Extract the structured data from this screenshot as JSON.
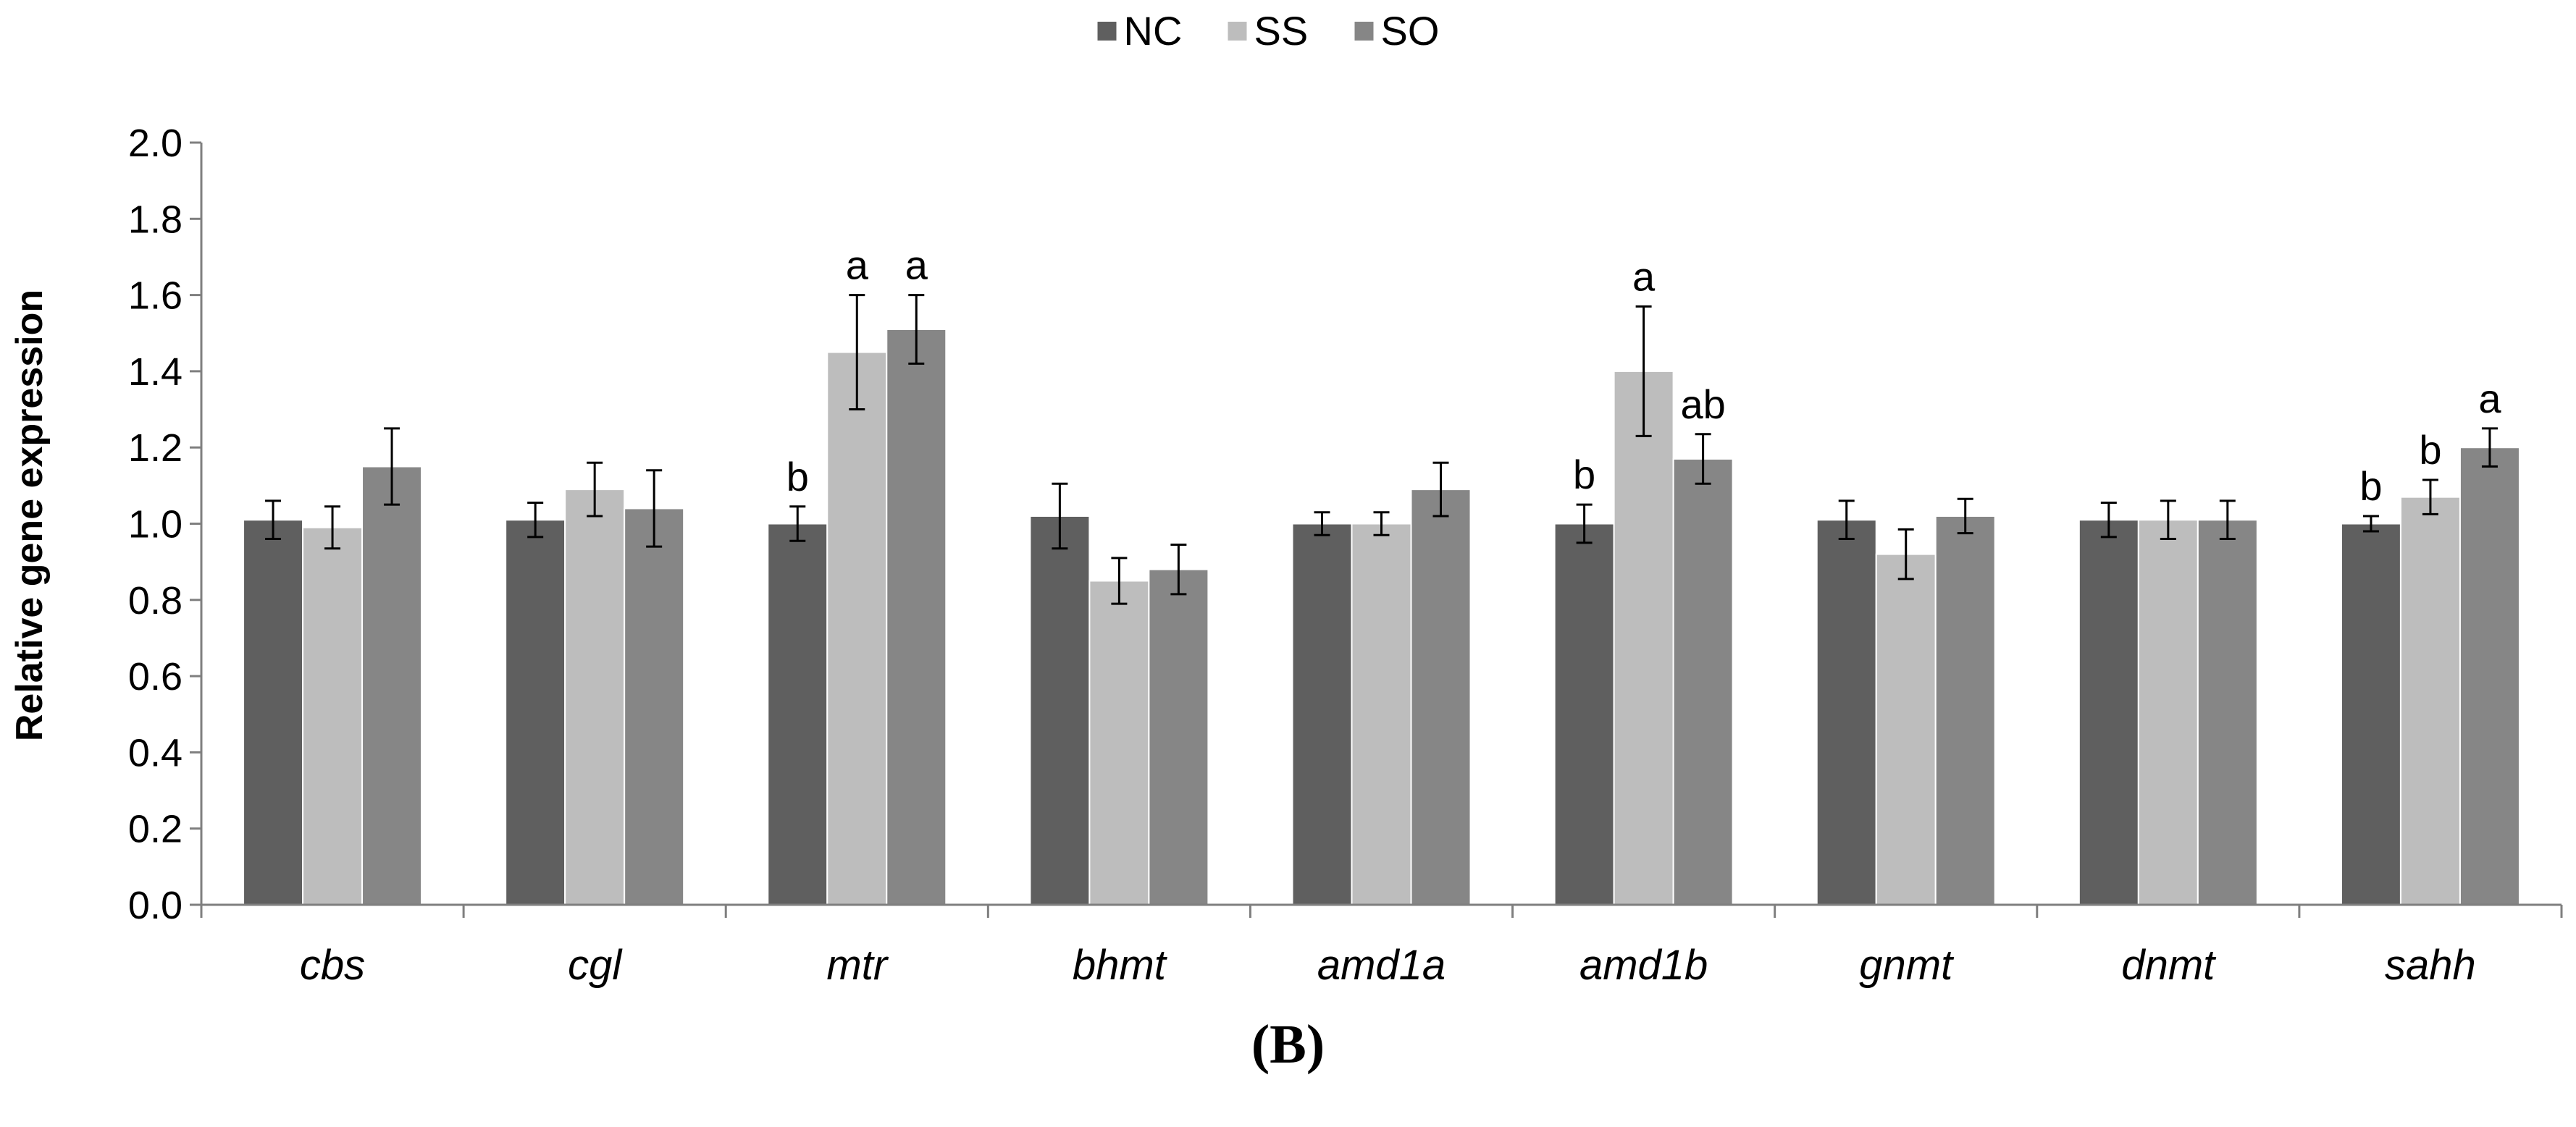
{
  "chart_data": {
    "type": "bar",
    "title": "",
    "xlabel": "",
    "ylabel": "Relative gene expression",
    "ylim": [
      0.0,
      2.0
    ],
    "yticks": [
      "0.0",
      "0.2",
      "0.4",
      "0.6",
      "0.8",
      "1.0",
      "1.2",
      "1.4",
      "1.6",
      "1.8",
      "2.0"
    ],
    "legend_position": "top-center",
    "grid": false,
    "categories": [
      "cbs",
      "cgl",
      "mtr",
      "bhmt",
      "amd1a",
      "amd1b",
      "gnmt",
      "dnmt",
      "sahh"
    ],
    "series": [
      {
        "name": "NC",
        "color": "#5f5f5f",
        "values": [
          1.01,
          1.01,
          1.0,
          1.02,
          1.0,
          1.0,
          1.01,
          1.01,
          1.0
        ],
        "errors": [
          0.05,
          0.045,
          0.045,
          0.085,
          0.03,
          0.05,
          0.05,
          0.045,
          0.02
        ],
        "labels": [
          "",
          "",
          "b",
          "",
          "",
          "b",
          "",
          "",
          "b"
        ]
      },
      {
        "name": "SS",
        "color": "#bdbdbd",
        "values": [
          0.99,
          1.09,
          1.45,
          0.85,
          1.0,
          1.4,
          0.92,
          1.01,
          1.07
        ],
        "errors": [
          0.055,
          0.07,
          0.15,
          0.06,
          0.03,
          0.17,
          0.065,
          0.05,
          0.045
        ],
        "labels": [
          "",
          "",
          "a",
          "",
          "",
          "a",
          "",
          "",
          "b"
        ]
      },
      {
        "name": "SO",
        "color": "#868686",
        "values": [
          1.15,
          1.04,
          1.51,
          0.88,
          1.09,
          1.17,
          1.02,
          1.01,
          1.2
        ],
        "errors": [
          0.1,
          0.1,
          0.09,
          0.065,
          0.07,
          0.065,
          0.045,
          0.05,
          0.05
        ],
        "labels": [
          "",
          "",
          "a",
          "",
          "",
          "ab",
          "",
          "",
          "a"
        ]
      }
    ]
  },
  "figure": {
    "panel_label": "(B)"
  }
}
